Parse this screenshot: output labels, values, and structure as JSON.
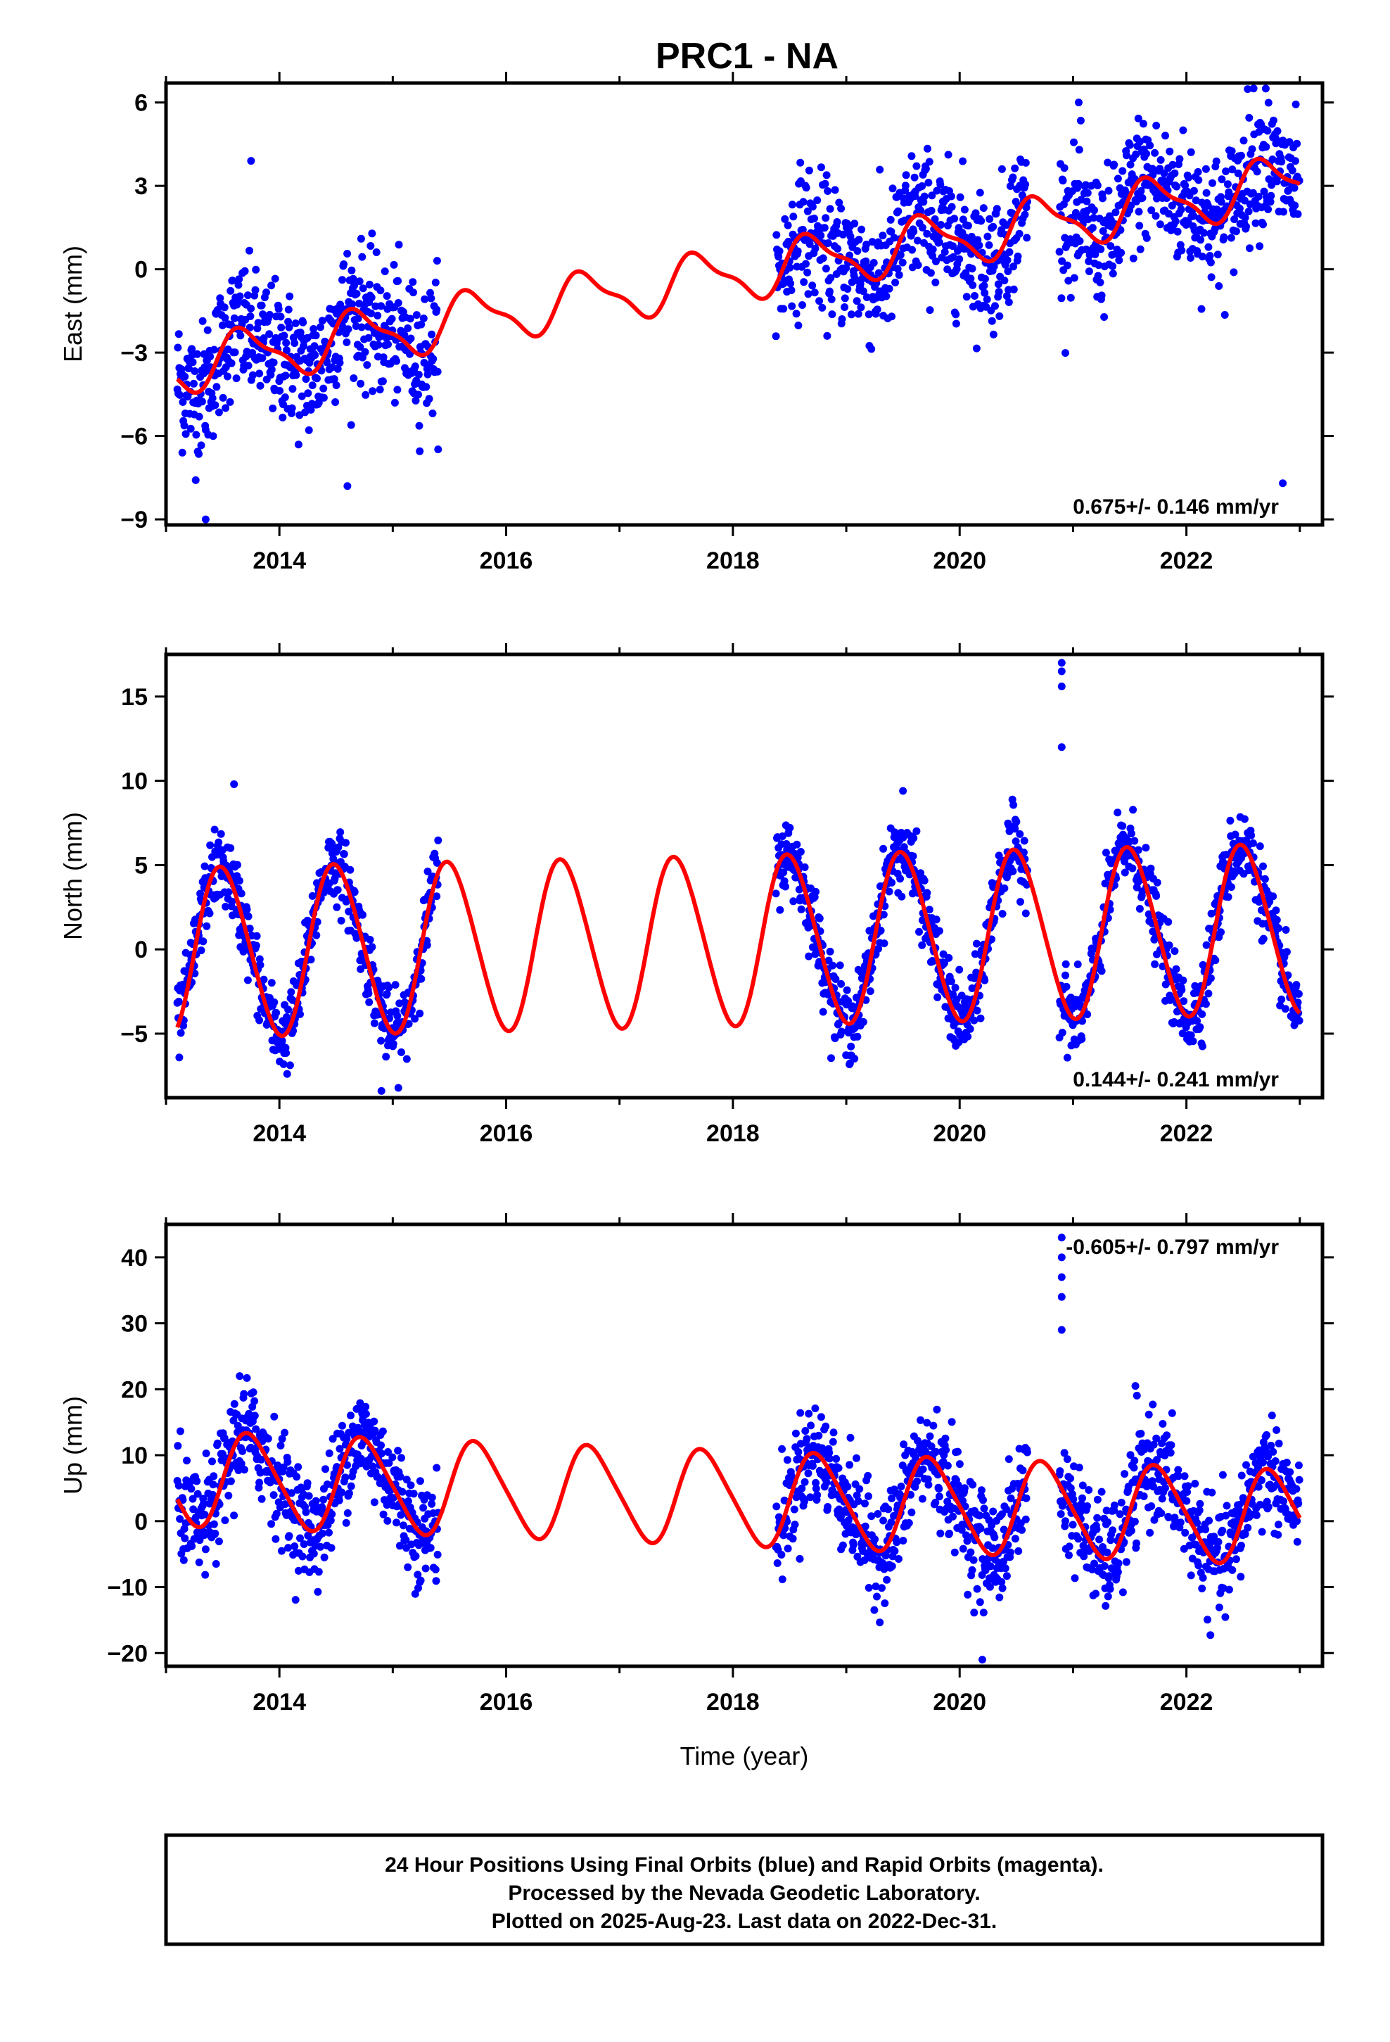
{
  "title": "PRC1 - NA",
  "colors": {
    "final_orbits": "#0000ff",
    "fit": "#ff0000",
    "frame": "#000000"
  },
  "footer": {
    "lines": [
      "24 Hour Positions Using Final Orbits (blue) and Rapid Orbits (magenta).",
      "Processed by the Nevada Geodetic Laboratory.",
      "Plotted on 2025-Aug-23. Last data on 2022-Dec-31."
    ]
  },
  "chart_data": [
    {
      "type": "scatter",
      "component": "east",
      "ylabel": "East (mm)",
      "xlabel": "",
      "xlim": [
        2013.0,
        2023.2
      ],
      "ylim": [
        -9.2,
        6.7
      ],
      "xticks": [
        2014,
        2016,
        2018,
        2020,
        2022
      ],
      "yticks": [
        -9,
        -6,
        -3,
        0,
        3,
        6
      ],
      "rate_label": "0.675+/- 0.146 mm/yr",
      "rate_position": "bottom-right",
      "data_segments": [
        [
          2013.1,
          2015.4
        ],
        [
          2018.38,
          2020.6
        ],
        [
          2020.88,
          2023.0
        ]
      ],
      "series": [
        {
          "name": "Final Orbits (blue)",
          "color": "#0000ff",
          "model": {
            "offset": -0.2,
            "rate": 0.675,
            "annual_amp": 0.9,
            "annual_phase": 2013.45,
            "semiannual_amp": 0.3,
            "scatter": 1.2
          },
          "outliers": [
            [
              2013.75,
              3.9
            ],
            [
              2014.6,
              -7.8
            ],
            [
              2013.35,
              -9.0
            ],
            [
              2021.05,
              6.0
            ],
            [
              2022.7,
              6.5
            ],
            [
              2022.85,
              -7.7
            ]
          ]
        },
        {
          "name": "fit",
          "color": "#ff0000",
          "kind": "line"
        }
      ]
    },
    {
      "type": "scatter",
      "component": "north",
      "ylabel": "North (mm)",
      "xlabel": "",
      "xlim": [
        2013.0,
        2023.2
      ],
      "ylim": [
        -8.8,
        17.5
      ],
      "xticks": [
        2014,
        2016,
        2018,
        2020,
        2022
      ],
      "yticks": [
        -5,
        0,
        5,
        10,
        15
      ],
      "rate_label": "0.144+/- 0.241 mm/yr",
      "rate_position": "bottom-right",
      "data_segments": [
        [
          2013.1,
          2015.4
        ],
        [
          2018.38,
          2020.6
        ],
        [
          2020.88,
          2023.0
        ]
      ],
      "series": [
        {
          "name": "Final Orbits (blue)",
          "color": "#0000ff",
          "model": {
            "offset": 0.5,
            "rate": 0.144,
            "annual_amp": 5.0,
            "annual_phase": 2013.25,
            "semiannual_amp": 0.4,
            "scatter": 1.1
          },
          "outliers": [
            [
              2020.9,
              17.0
            ],
            [
              2020.9,
              16.5
            ],
            [
              2020.9,
              15.6
            ],
            [
              2020.9,
              12.0
            ],
            [
              2014.9,
              -8.4
            ],
            [
              2013.6,
              9.8
            ],
            [
              2019.5,
              9.4
            ]
          ]
        },
        {
          "name": "fit",
          "color": "#ff0000",
          "kind": "line"
        }
      ]
    },
    {
      "type": "scatter",
      "component": "up",
      "ylabel": "Up (mm)",
      "xlabel": "Time (year)",
      "xlim": [
        2013.0,
        2023.2
      ],
      "ylim": [
        -22,
        45
      ],
      "xticks": [
        2014,
        2016,
        2018,
        2020,
        2022
      ],
      "yticks": [
        -20,
        -10,
        0,
        10,
        20,
        30,
        40
      ],
      "rate_label": "-0.605+/- 0.797 mm/yr",
      "rate_position": "top-right",
      "data_segments": [
        [
          2013.1,
          2015.4
        ],
        [
          2018.38,
          2020.6
        ],
        [
          2020.88,
          2023.0
        ]
      ],
      "series": [
        {
          "name": "Final Orbits (blue)",
          "color": "#0000ff",
          "model": {
            "offset": 3.5,
            "rate": -0.605,
            "annual_amp": 7.0,
            "annual_phase": 2013.5,
            "semiannual_amp": 1.0,
            "scatter": 4.0
          },
          "outliers": [
            [
              2020.9,
              43.0
            ],
            [
              2020.9,
              40.0
            ],
            [
              2020.9,
              37.0
            ],
            [
              2020.9,
              34.0
            ],
            [
              2020.9,
              29.0
            ],
            [
              2013.65,
              22.0
            ],
            [
              2021.55,
              20.5
            ],
            [
              2020.2,
              -21.0
            ]
          ]
        },
        {
          "name": "fit",
          "color": "#ff0000",
          "kind": "line"
        }
      ]
    }
  ]
}
